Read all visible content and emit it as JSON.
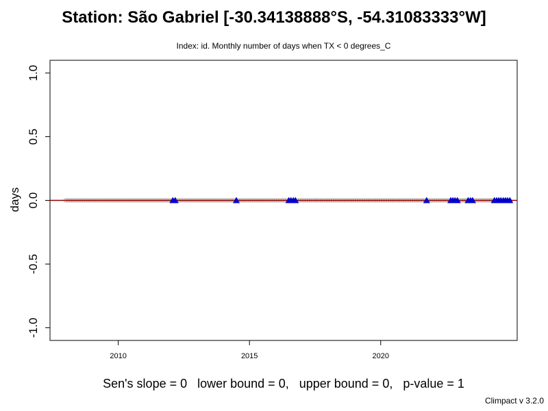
{
  "title": "Station: São Gabriel [-30.34138888°S, -54.31083333°W]",
  "subtitle": "Index: id. Monthly number of days when TX < 0 degrees_C",
  "footer": "Sen's slope = 0   lower bound = 0,   upper bound = 0,   p-value = 1",
  "version": "Climpact v 3.2.0",
  "colors": {
    "points": "#b5a49a",
    "trend": "#8b0000",
    "missing_marker": "#0000cc",
    "axis": "#000000"
  },
  "chart_data": {
    "type": "scatter",
    "title": "Station: São Gabriel [-30.34138888°S, -54.31083333°W]",
    "subtitle": "Index: id. Monthly number of days when TX < 0 degrees_C",
    "xlabel": "",
    "ylabel": "days",
    "xlim": [
      2007.4,
      2025.2
    ],
    "ylim": [
      -1.1,
      1.1
    ],
    "xticks": [
      2010,
      2015,
      2020
    ],
    "yticks": [
      -1.0,
      -0.5,
      0.0,
      0.5,
      1.0
    ],
    "ytick_labels": [
      "-1.0",
      "-0.5",
      "0.0",
      "0.5",
      "1.0"
    ],
    "grid": false,
    "series": [
      {
        "kind": "monthly_values",
        "x_start": 2008.0,
        "x_end": 2024.917,
        "step": 0.08333,
        "value": 0
      },
      {
        "kind": "missing_months",
        "x": [
          2012.08,
          2012.17,
          2014.5,
          2016.5,
          2016.58,
          2016.67,
          2016.75,
          2021.75,
          2022.67,
          2022.75,
          2022.83,
          2022.92,
          2023.33,
          2023.42,
          2023.5,
          2024.33,
          2024.42,
          2024.5,
          2024.58,
          2024.67,
          2024.75,
          2024.83,
          2024.92
        ],
        "value": 0
      },
      {
        "kind": "trend_line",
        "x": [
          2007.4,
          2025.2
        ],
        "values": [
          0,
          0
        ]
      }
    ],
    "sens_slope": 0,
    "lower_bound": 0,
    "upper_bound": 0,
    "p_value": 1
  }
}
